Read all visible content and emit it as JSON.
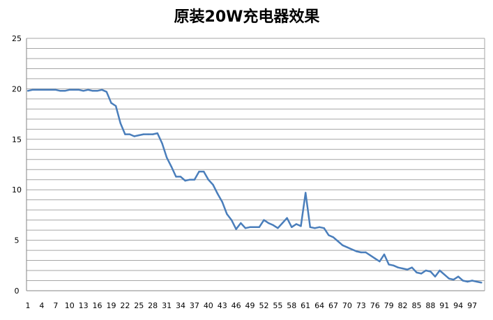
{
  "chart_data": {
    "type": "line",
    "title": "原装20W充电器效果",
    "xlabel": "",
    "ylabel": "",
    "ylim": [
      0,
      25
    ],
    "yticks": [
      0,
      5,
      10,
      15,
      20,
      25
    ],
    "x_tick_labels": [
      "1",
      "4",
      "7",
      "10",
      "13",
      "16",
      "19",
      "22",
      "25",
      "28",
      "31",
      "34",
      "37",
      "40",
      "43",
      "46",
      "49",
      "52",
      "55",
      "58",
      "61",
      "64",
      "67",
      "70",
      "73",
      "76",
      "79",
      "82",
      "85",
      "88",
      "91",
      "94",
      "97"
    ],
    "grid": "horizontal",
    "line_color": "#4a7ebb",
    "series": [
      {
        "x": [
          1,
          2,
          3,
          4,
          5,
          6,
          7,
          8,
          9,
          10,
          11,
          12,
          13,
          14,
          15,
          16,
          17,
          18,
          19,
          20,
          21,
          22,
          23,
          24,
          25,
          26,
          27,
          28,
          29,
          30,
          31,
          32,
          33,
          34,
          35,
          36,
          37,
          38,
          39,
          40,
          41,
          42,
          43,
          44,
          45,
          46,
          47,
          48,
          49,
          50,
          51,
          52,
          53,
          54,
          55,
          56,
          57,
          58,
          59,
          60,
          61,
          62,
          63,
          64,
          65,
          66,
          67,
          68,
          69,
          70,
          71,
          72,
          73,
          74,
          75,
          76,
          77,
          78,
          79,
          80,
          81,
          82,
          83,
          84,
          85,
          86,
          87,
          88,
          89,
          90,
          91,
          92,
          93,
          94,
          95,
          96,
          97,
          98,
          99
        ],
        "values": [
          19.8,
          19.9,
          19.9,
          19.9,
          19.9,
          19.9,
          19.9,
          19.8,
          19.8,
          19.9,
          19.9,
          19.9,
          19.8,
          19.9,
          19.8,
          19.8,
          19.9,
          19.7,
          18.6,
          18.3,
          16.6,
          15.5,
          15.5,
          15.3,
          15.4,
          15.5,
          15.5,
          15.5,
          15.6,
          14.6,
          13.2,
          12.3,
          11.3,
          11.3,
          10.9,
          11.0,
          11.0,
          11.8,
          11.8,
          11.0,
          10.5,
          9.6,
          8.8,
          7.6,
          7.0,
          6.1,
          6.7,
          6.2,
          6.3,
          6.3,
          6.3,
          7.0,
          6.7,
          6.5,
          6.2,
          6.7,
          7.2,
          6.3,
          6.6,
          6.4,
          9.7,
          6.3,
          6.2,
          6.3,
          6.2,
          5.5,
          5.3,
          4.9,
          4.5,
          4.3,
          4.1,
          3.9,
          3.8,
          3.8,
          3.5,
          3.2,
          2.9,
          3.6,
          2.6,
          2.5,
          2.3,
          2.2,
          2.1,
          2.3,
          1.8,
          1.7,
          2.0,
          1.9,
          1.4,
          2.0,
          1.6,
          1.2,
          1.1,
          1.4,
          1.0,
          0.9,
          1.0,
          0.9,
          0.8
        ]
      }
    ]
  }
}
